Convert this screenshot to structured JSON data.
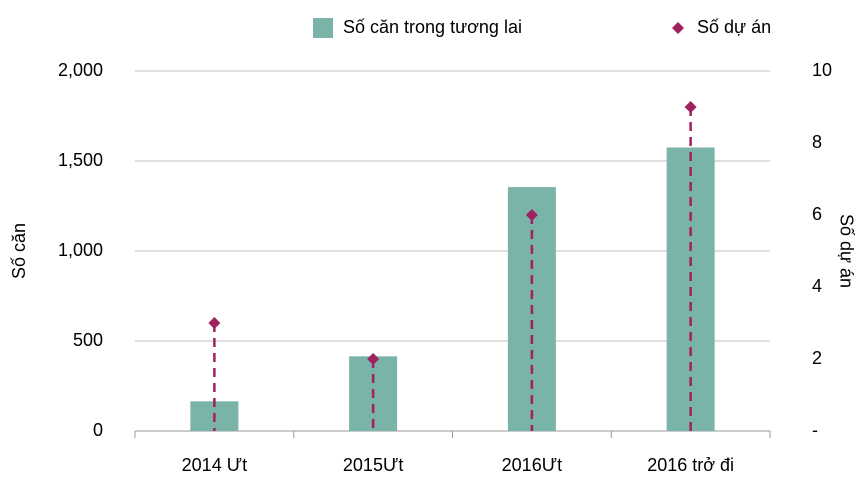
{
  "chart_data": {
    "type": "bar_dot",
    "categories": [
      "2014 Ưt",
      "2015Ưt",
      "2016Ưt",
      "2016 trở đi"
    ],
    "series": [
      {
        "name": "Số căn trong tương lai",
        "color": "#7ab3a7",
        "values": [
          165,
          415,
          1355,
          1575
        ]
      },
      {
        "name": "Số dự án",
        "color": "#a0215f",
        "axis": "y2",
        "values": [
          3,
          2,
          6,
          9
        ]
      }
    ],
    "ylabel": "Số căn",
    "y2label": "Số dự án",
    "ylim": [
      0,
      2000
    ],
    "yticks": [
      0,
      500,
      {
        "value": 1000,
        "label": "1,000"
      },
      {
        "value": 1500,
        "label": "1,500"
      },
      {
        "value": 2000,
        "label": "2,000"
      }
    ],
    "y2lim": [
      0,
      10
    ],
    "y2ticks": [
      {
        "value": 0,
        "label": "-"
      },
      2,
      4,
      6,
      8,
      10
    ],
    "grid": true,
    "legend": "top"
  }
}
